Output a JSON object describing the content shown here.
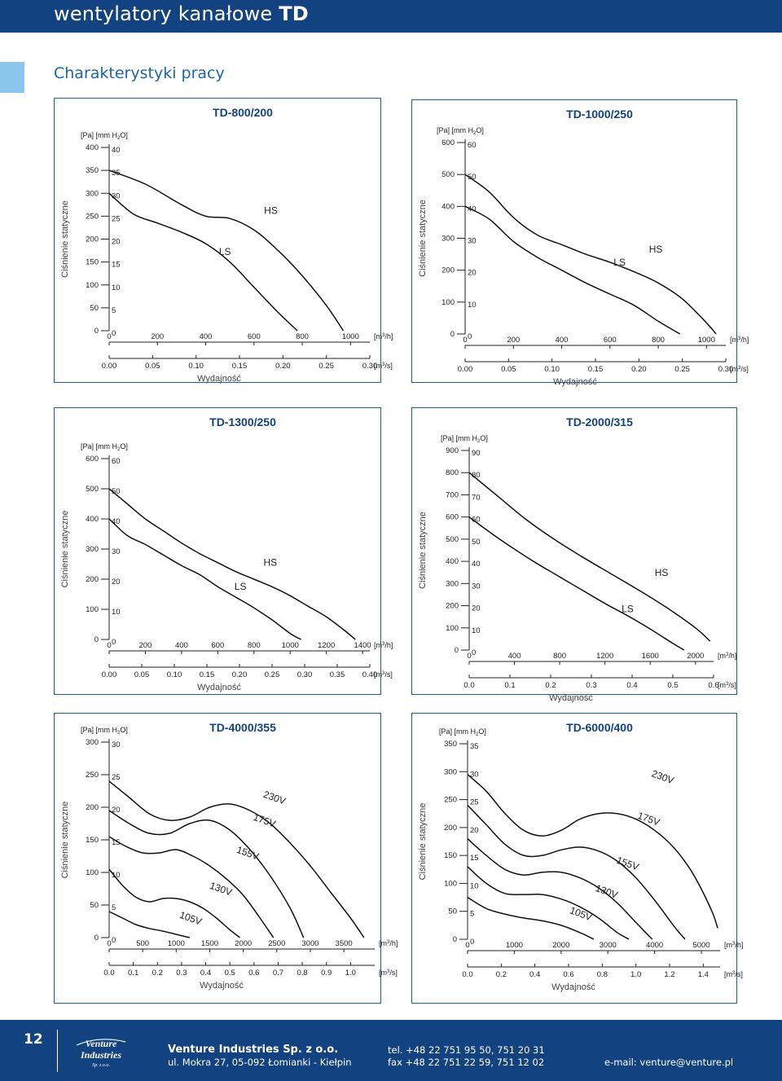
{
  "header": {
    "title_prefix": "wentylatory kanałowe",
    "title_model": "TD"
  },
  "section_title": "Charakterystyki pracy",
  "charts_common": {
    "ylabel": "Ciśnienie statyczne",
    "xlabel": "Wydajność",
    "y_unit_label_pa": "[Pa] [mm H",
    "y_unit_label_h2o_sub": "2",
    "y_unit_label_end": "O]",
    "x_unit_m3h": "[m",
    "x_unit_m3h_end": "/h]",
    "x_unit_m3s_end": "/s]",
    "sup3": "3"
  },
  "chart_data": [
    {
      "type": "line",
      "title": "TD-800/200",
      "xlabel": "Wydajność",
      "ylabel": "Ciśnienie statyczne",
      "xlim": [
        0,
        1080
      ],
      "ylim": [
        0,
        400
      ],
      "x_ticks_m3h": [
        "0",
        "200",
        "400",
        "600",
        "800",
        "1000"
      ],
      "x_ticks_m3h_values": [
        0,
        200,
        400,
        600,
        800,
        1000
      ],
      "x_ticks_m3s": [
        "0.00",
        "0.05",
        "0.10",
        "0.15",
        "0.20",
        "0.25",
        "0.30"
      ],
      "x_ticks_m3s_values": [
        0,
        180,
        360,
        540,
        720,
        900,
        1080
      ],
      "y_ticks_pa": [
        "0",
        "50",
        "100",
        "150",
        "200",
        "250",
        "300",
        "350",
        "400"
      ],
      "y_ticks_mm": [
        "0",
        "5",
        "10",
        "15",
        "20",
        "25",
        "30",
        "35",
        "40"
      ],
      "y_ticks_values": [
        0,
        50,
        100,
        150,
        200,
        250,
        300,
        350,
        400
      ],
      "series": [
        {
          "name": "LS",
          "x": [
            0,
            100,
            200,
            300,
            400,
            500,
            600,
            700,
            780
          ],
          "y": [
            300,
            255,
            235,
            215,
            190,
            150,
            95,
            40,
            0
          ]
        },
        {
          "name": "HS",
          "x": [
            0,
            150,
            300,
            400,
            500,
            600,
            700,
            800,
            900,
            970
          ],
          "y": [
            350,
            320,
            275,
            250,
            245,
            220,
            175,
            120,
            55,
            0
          ]
        }
      ],
      "labels": [
        {
          "text": "LS",
          "x": 480,
          "y": 165
        },
        {
          "text": "HS",
          "x": 670,
          "y": 255
        }
      ]
    },
    {
      "type": "line",
      "title": "TD-1000/250",
      "xlabel": "Wydajność",
      "ylabel": "Ciśnienie statyczne",
      "xlim": [
        0,
        1080
      ],
      "ylim": [
        0,
        600
      ],
      "x_ticks_m3h": [
        "0",
        "200",
        "400",
        "600",
        "800",
        "1000"
      ],
      "x_ticks_m3h_values": [
        0,
        200,
        400,
        600,
        800,
        1000
      ],
      "x_ticks_m3s": [
        "0.00",
        "0.05",
        "0.10",
        "0.15",
        "0.20",
        "0.25",
        "0.30"
      ],
      "x_ticks_m3s_values": [
        0,
        180,
        360,
        540,
        720,
        900,
        1080
      ],
      "y_ticks_pa": [
        "0",
        "100",
        "200",
        "300",
        "400",
        "500",
        "600"
      ],
      "y_ticks_mm": [
        "0",
        "10",
        "20",
        "30",
        "40",
        "50",
        "60"
      ],
      "y_ticks_values": [
        0,
        100,
        200,
        300,
        400,
        500,
        600
      ],
      "series": [
        {
          "name": "LS",
          "x": [
            0,
            100,
            200,
            300,
            400,
            500,
            600,
            700,
            800,
            890
          ],
          "y": [
            400,
            360,
            290,
            240,
            200,
            160,
            125,
            90,
            40,
            0
          ]
        },
        {
          "name": "HS",
          "x": [
            0,
            100,
            200,
            300,
            400,
            500,
            600,
            700,
            800,
            900,
            1000,
            1040
          ],
          "y": [
            500,
            445,
            365,
            310,
            280,
            250,
            225,
            195,
            160,
            110,
            35,
            0
          ]
        }
      ],
      "labels": [
        {
          "text": "LS",
          "x": 640,
          "y": 215
        },
        {
          "text": "HS",
          "x": 790,
          "y": 255
        }
      ]
    },
    {
      "type": "line",
      "title": "TD-1300/250",
      "xlabel": "Wydajność",
      "ylabel": "Ciśnienie statyczne",
      "xlim": [
        0,
        1440
      ],
      "ylim": [
        0,
        600
      ],
      "x_ticks_m3h": [
        "0",
        "200",
        "400",
        "600",
        "800",
        "1000",
        "1200",
        "1400"
      ],
      "x_ticks_m3h_values": [
        0,
        200,
        400,
        600,
        800,
        1000,
        1200,
        1400
      ],
      "x_ticks_m3s": [
        "0.00",
        "0.05",
        "0.10",
        "0.15",
        "0.20",
        "0.25",
        "0.30",
        "0.35",
        "0.40"
      ],
      "x_ticks_m3s_values": [
        0,
        180,
        360,
        540,
        720,
        900,
        1080,
        1260,
        1440
      ],
      "y_ticks_pa": [
        "0",
        "100",
        "200",
        "300",
        "400",
        "500",
        "600"
      ],
      "y_ticks_mm": [
        "0",
        "10",
        "20",
        "30",
        "40",
        "50",
        "60"
      ],
      "y_ticks_values": [
        0,
        100,
        200,
        300,
        400,
        500,
        600
      ],
      "series": [
        {
          "name": "LS",
          "x": [
            0,
            100,
            200,
            300,
            400,
            500,
            600,
            700,
            800,
            900,
            1000,
            1060
          ],
          "y": [
            400,
            345,
            315,
            280,
            245,
            215,
            175,
            140,
            105,
            65,
            20,
            0
          ]
        },
        {
          "name": "HS",
          "x": [
            0,
            100,
            200,
            300,
            400,
            500,
            600,
            700,
            800,
            900,
            1000,
            1100,
            1200,
            1300,
            1360
          ],
          "y": [
            500,
            450,
            400,
            360,
            320,
            285,
            255,
            225,
            200,
            175,
            145,
            110,
            75,
            30,
            0
          ]
        }
      ],
      "labels": [
        {
          "text": "LS",
          "x": 725,
          "y": 165
        },
        {
          "text": "HS",
          "x": 890,
          "y": 245
        }
      ]
    },
    {
      "type": "line",
      "title": "TD-2000/315",
      "xlabel": "Wydajność",
      "ylabel": "Ciśnienie statyczne",
      "xlim": [
        0,
        2160
      ],
      "ylim": [
        0,
        900
      ],
      "x_ticks_m3h": [
        "0",
        "400",
        "800",
        "1200",
        "1600",
        "2000"
      ],
      "x_ticks_m3h_values": [
        0,
        400,
        800,
        1200,
        1600,
        2000
      ],
      "x_ticks_m3s": [
        "0.0",
        "0.1",
        "0.2",
        "0.3",
        "0.4",
        "0.5",
        "0.6"
      ],
      "x_ticks_m3s_values": [
        0,
        360,
        720,
        1080,
        1440,
        1800,
        2160
      ],
      "y_ticks_pa": [
        "0",
        "100",
        "200",
        "300",
        "400",
        "500",
        "600",
        "700",
        "800",
        "900"
      ],
      "y_ticks_mm": [
        "0",
        "10",
        "20",
        "30",
        "40",
        "50",
        "60",
        "70",
        "80",
        "90"
      ],
      "y_ticks_values": [
        0,
        100,
        200,
        300,
        400,
        500,
        600,
        700,
        800,
        900
      ],
      "series": [
        {
          "name": "LS",
          "x": [
            0,
            200,
            400,
            600,
            800,
            1000,
            1200,
            1400,
            1600,
            1800,
            1900
          ],
          "y": [
            600,
            525,
            455,
            390,
            330,
            270,
            210,
            155,
            95,
            30,
            0
          ]
        },
        {
          "name": "HS",
          "x": [
            0,
            250,
            500,
            750,
            1000,
            1250,
            1500,
            1750,
            2000,
            2130
          ],
          "y": [
            800,
            695,
            590,
            500,
            420,
            345,
            270,
            190,
            100,
            40
          ]
        }
      ],
      "labels": [
        {
          "text": "LS",
          "x": 1400,
          "y": 170
        },
        {
          "text": "HS",
          "x": 1700,
          "y": 335
        }
      ]
    },
    {
      "type": "line",
      "title": "TD-4000/355",
      "xlabel": "Wydajność",
      "ylabel": "Ciśnienie statyczne",
      "xlim": [
        0,
        3960
      ],
      "ylim": [
        0,
        300
      ],
      "x_ticks_m3h": [
        "0",
        "500",
        "1000",
        "1500",
        "2000",
        "2500",
        "3000",
        "3500"
      ],
      "x_ticks_m3h_values": [
        0,
        500,
        1000,
        1500,
        2000,
        2500,
        3000,
        3500
      ],
      "x_ticks_m3s": [
        "0.0",
        "0.1",
        "0.2",
        "0.3",
        "0.4",
        "0.5",
        "0.6",
        "0.7",
        "0.8",
        "0.9",
        "1.0"
      ],
      "x_ticks_m3s_values": [
        0,
        360,
        720,
        1080,
        1440,
        1800,
        2160,
        2520,
        2880,
        3240,
        3600
      ],
      "y_ticks_pa": [
        "0",
        "50",
        "100",
        "150",
        "200",
        "250",
        "300"
      ],
      "y_ticks_mm": [
        "0",
        "5",
        "10",
        "15",
        "20",
        "25",
        "30"
      ],
      "y_ticks_values": [
        0,
        50,
        100,
        150,
        200,
        250,
        300
      ],
      "series": [
        {
          "name": "105V",
          "x": [
            0,
            200,
            400,
            600,
            800,
            1000,
            1200
          ],
          "y": [
            40,
            30,
            20,
            14,
            10,
            5,
            0
          ]
        },
        {
          "name": "130V",
          "x": [
            0,
            200,
            400,
            600,
            800,
            1000,
            1200,
            1400,
            1600,
            1800,
            1950
          ],
          "y": [
            105,
            80,
            62,
            55,
            60,
            60,
            55,
            45,
            30,
            12,
            0
          ]
        },
        {
          "name": "155V",
          "x": [
            0,
            250,
            500,
            750,
            1000,
            1250,
            1500,
            1750,
            2000,
            2250,
            2450
          ],
          "y": [
            155,
            140,
            130,
            130,
            135,
            125,
            110,
            90,
            65,
            30,
            0
          ]
        },
        {
          "name": "175V",
          "x": [
            0,
            300,
            600,
            900,
            1200,
            1500,
            1800,
            2100,
            2400,
            2700,
            2900
          ],
          "y": [
            195,
            175,
            160,
            160,
            175,
            180,
            165,
            135,
            95,
            45,
            0
          ]
        },
        {
          "name": "230V",
          "x": [
            0,
            300,
            600,
            900,
            1200,
            1500,
            1800,
            2100,
            2400,
            2700,
            3000,
            3300,
            3600,
            3800
          ],
          "y": [
            240,
            215,
            190,
            180,
            185,
            200,
            205,
            195,
            175,
            145,
            110,
            70,
            30,
            0
          ]
        }
      ],
      "labels": [
        {
          "text": "105V",
          "x": 1200,
          "y": 25
        },
        {
          "text": "130V",
          "x": 1650,
          "y": 70
        },
        {
          "text": "155V",
          "x": 2050,
          "y": 125
        },
        {
          "text": "175V",
          "x": 2300,
          "y": 175
        },
        {
          "text": "230V",
          "x": 2450,
          "y": 210
        }
      ]
    },
    {
      "type": "line",
      "title": "TD-6000/400",
      "xlabel": "Wydajność",
      "ylabel": "Ciśnienie statyczne",
      "xlim": [
        0,
        5400
      ],
      "ylim": [
        0,
        350
      ],
      "x_ticks_m3h": [
        "0",
        "1000",
        "2000",
        "3000",
        "4000",
        "5000"
      ],
      "x_ticks_m3h_values": [
        0,
        1000,
        2000,
        3000,
        4000,
        5000
      ],
      "x_ticks_m3s": [
        "0.0",
        "0.2",
        "0.4",
        "0.6",
        "0.8",
        "1.0",
        "1.2",
        "1.4"
      ],
      "x_ticks_m3s_values": [
        0,
        720,
        1440,
        2160,
        2880,
        3600,
        4320,
        5040
      ],
      "y_ticks_pa": [
        "0",
        "50",
        "100",
        "150",
        "200",
        "250",
        "300",
        "350"
      ],
      "y_ticks_mm": [
        "0",
        "5",
        "10",
        "15",
        "20",
        "25",
        "30",
        "35"
      ],
      "y_ticks_values": [
        0,
        50,
        100,
        150,
        200,
        250,
        300,
        350
      ],
      "series": [
        {
          "name": "105V",
          "x": [
            0,
            400,
            800,
            1200,
            1600,
            2000,
            2400,
            2700
          ],
          "y": [
            75,
            55,
            45,
            38,
            33,
            25,
            12,
            0
          ]
        },
        {
          "name": "130V",
          "x": [
            0,
            400,
            800,
            1200,
            1600,
            2000,
            2400,
            2800,
            3200,
            3450
          ],
          "y": [
            130,
            100,
            82,
            80,
            80,
            72,
            58,
            38,
            12,
            0
          ]
        },
        {
          "name": "155V",
          "x": [
            0,
            400,
            800,
            1200,
            1600,
            2000,
            2400,
            2800,
            3200,
            3600,
            3950
          ],
          "y": [
            180,
            150,
            125,
            115,
            120,
            120,
            110,
            92,
            65,
            30,
            0
          ]
        },
        {
          "name": "175V",
          "x": [
            0,
            400,
            800,
            1200,
            1600,
            2000,
            2400,
            2800,
            3200,
            3600,
            4000,
            4400,
            4650
          ],
          "y": [
            240,
            205,
            170,
            150,
            150,
            160,
            165,
            158,
            140,
            110,
            70,
            25,
            0
          ]
        },
        {
          "name": "230V",
          "x": [
            0,
            400,
            800,
            1200,
            1600,
            2000,
            2400,
            2800,
            3200,
            3600,
            4000,
            4400,
            4800,
            5200,
            5350
          ],
          "y": [
            295,
            265,
            225,
            195,
            185,
            195,
            215,
            225,
            225,
            215,
            195,
            165,
            120,
            55,
            20
          ]
        }
      ],
      "labels": [
        {
          "text": "105V",
          "x": 2400,
          "y": 40
        },
        {
          "text": "130V",
          "x": 2950,
          "y": 80
        },
        {
          "text": "155V",
          "x": 3400,
          "y": 130
        },
        {
          "text": "175V",
          "x": 3850,
          "y": 210
        },
        {
          "text": "230V",
          "x": 4150,
          "y": 285
        }
      ]
    }
  ],
  "footer": {
    "page_number": "12",
    "logo_line1": "Venture",
    "logo_line2": "Industries",
    "logo_line3": "Sp. z o.o.",
    "company": "Venture Industries Sp. z o.o.",
    "address": "ul. Mokra 27, 05-092 Łomianki - Kiełpin",
    "tel": "tel. +48 22 751 95 50, 751 20 31",
    "fax": "fax +48 22 751 22 59, 751 12 02",
    "email": "e-mail: venture@venture.pl"
  }
}
